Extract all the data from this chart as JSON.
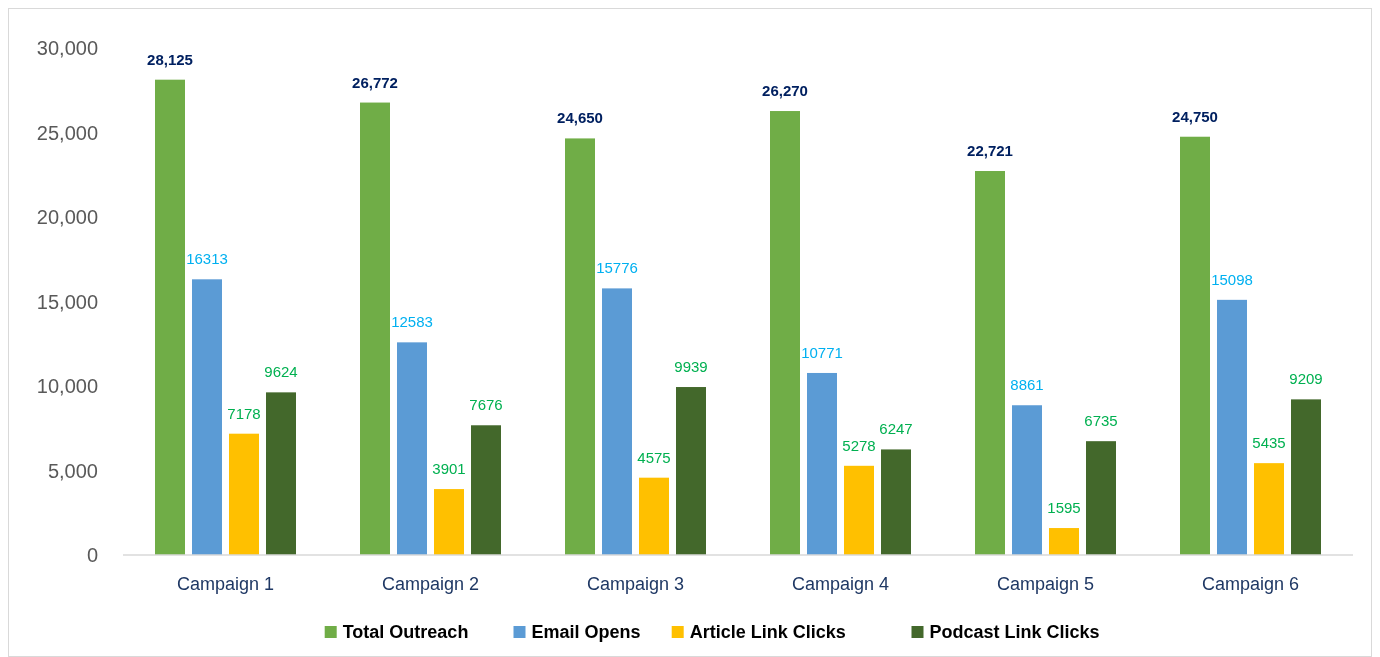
{
  "chart_data": {
    "type": "bar",
    "categories": [
      "Campaign 1",
      "Campaign 2",
      "Campaign 3",
      "Campaign 4",
      "Campaign 5",
      "Campaign 6"
    ],
    "series": [
      {
        "name": "Total Outreach",
        "color": "#70ad47",
        "values": [
          28125,
          26772,
          24650,
          26270,
          22721,
          24750
        ],
        "value_labels": [
          "28,125",
          "26,772",
          "24,650",
          "26,270",
          "22,721",
          "24,750"
        ]
      },
      {
        "name": "Email Opens",
        "color": "#5b9bd5",
        "values": [
          16313,
          12583,
          15776,
          10771,
          8861,
          15098
        ],
        "value_labels": [
          "16313",
          "12583",
          "15776",
          "10771",
          "8861",
          "15098"
        ]
      },
      {
        "name": "Article Link Clicks",
        "color": "#ffc000",
        "values": [
          7178,
          3901,
          4575,
          5278,
          1595,
          5435
        ],
        "value_labels": [
          "7178",
          "3901",
          "4575",
          "5278",
          "1595",
          "5435"
        ]
      },
      {
        "name": "Podcast Link Clicks",
        "color": "#43682b",
        "values": [
          9624,
          7676,
          9939,
          6247,
          6735,
          9209
        ],
        "value_labels": [
          "9624",
          "7676",
          "9939",
          "6247",
          "6735",
          "9209"
        ]
      }
    ],
    "ylim": [
      0,
      30000
    ],
    "yticks": [
      {
        "value": 0,
        "label": "0"
      },
      {
        "value": 5000,
        "label": "5,000"
      },
      {
        "value": 10000,
        "label": "10,000"
      },
      {
        "value": 15000,
        "label": "15,000"
      },
      {
        "value": 20000,
        "label": "20,000"
      },
      {
        "value": 25000,
        "label": "25,000"
      },
      {
        "value": 30000,
        "label": "30,000"
      }
    ],
    "grid": false,
    "legend": "bottom"
  }
}
